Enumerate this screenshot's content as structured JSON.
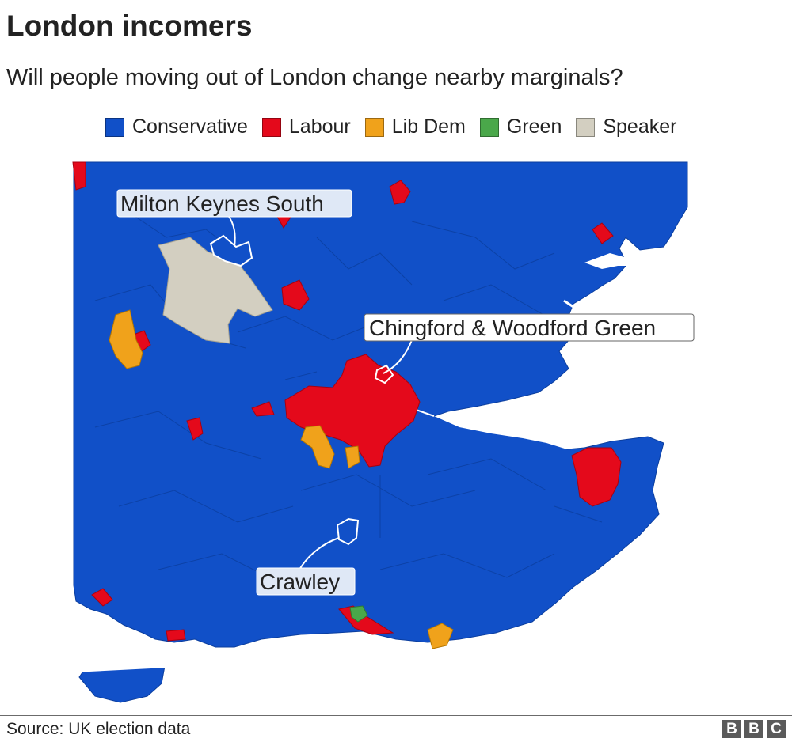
{
  "title": "London incomers",
  "subtitle": "Will people moving out of London change nearby marginals?",
  "legend": [
    {
      "label": "Conservative",
      "color": "#1150c8"
    },
    {
      "label": "Labour",
      "color": "#e4091b"
    },
    {
      "label": "Lib Dem",
      "color": "#f0a21b"
    },
    {
      "label": "Green",
      "color": "#4aa84a"
    },
    {
      "label": "Speaker",
      "color": "#d3cfc1"
    }
  ],
  "labels": {
    "milton_keynes": "Milton Keynes South",
    "chingford": "Chingford & Woodford Green",
    "crawley": "Crawley"
  },
  "source": "Source: UK election data",
  "brand": [
    "B",
    "B",
    "C"
  ]
}
